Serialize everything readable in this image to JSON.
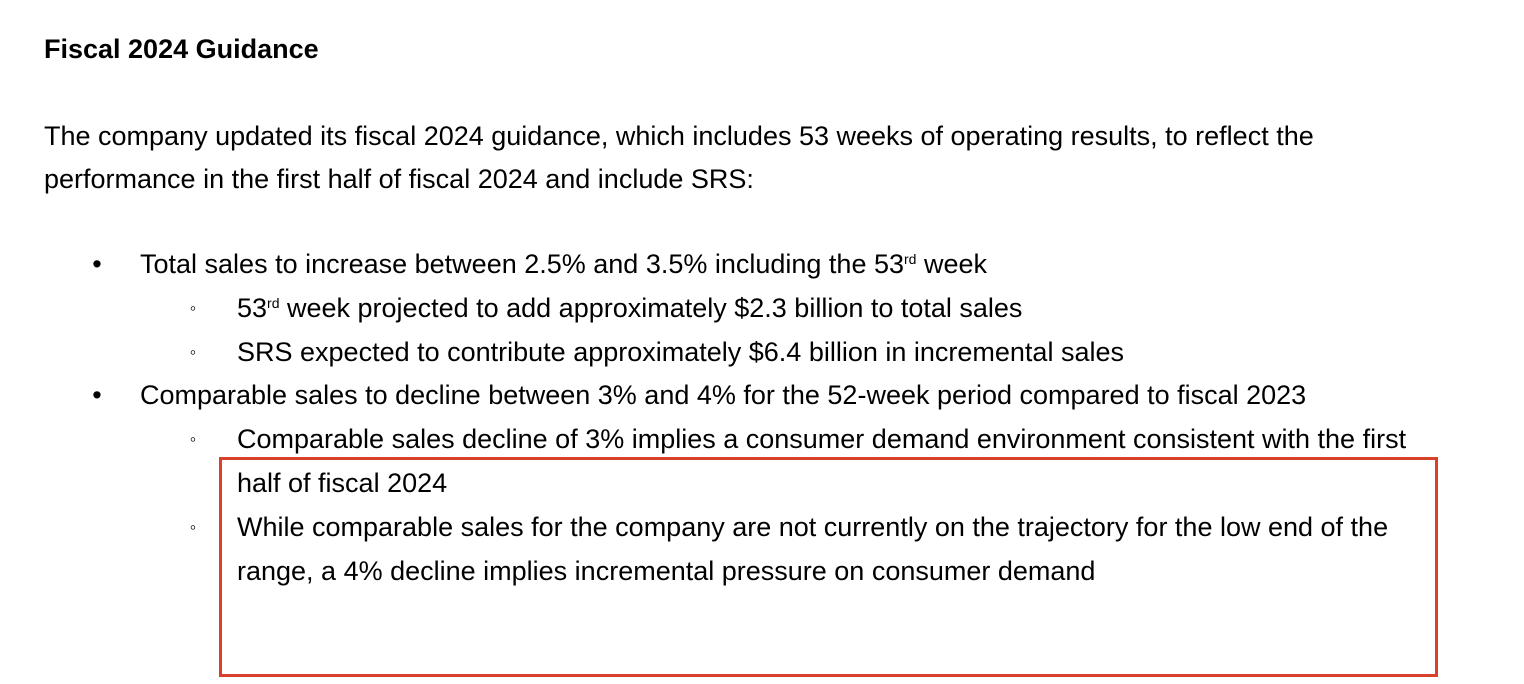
{
  "heading": "Fiscal 2024 Guidance",
  "intro": "The company updated its fiscal 2024 guidance, which includes 53 weeks of operating results, to reflect the performance in the first half of fiscal 2024 and include SRS:",
  "bullets": [
    {
      "parts": [
        {
          "text": "Total sales to increase between 2.5% and 3.5% including the 53"
        },
        {
          "sup": "rd"
        },
        {
          "text": " week"
        }
      ],
      "items": [
        {
          "parts": [
            {
              "text": "53"
            },
            {
              "sup": "rd"
            },
            {
              "text": " week projected to add approximately $2.3 billion to total sales"
            }
          ]
        },
        {
          "parts": [
            {
              "text": "SRS expected to contribute approximately $6.4 billion in incremental sales"
            }
          ]
        }
      ]
    },
    {
      "parts": [
        {
          "text": "Comparable sales to decline between 3% and 4% for the 52-week period compared to fiscal 2023"
        }
      ],
      "items": [
        {
          "parts": [
            {
              "text": "Comparable sales decline of 3% implies a consumer demand environment consistent with the first half of fiscal 2024"
            }
          ]
        },
        {
          "parts": [
            {
              "text": "While comparable sales for the company are not currently on the trajectory for the low end of the range, a 4% decline implies incremental pressure on consumer demand"
            }
          ]
        }
      ]
    }
  ]
}
